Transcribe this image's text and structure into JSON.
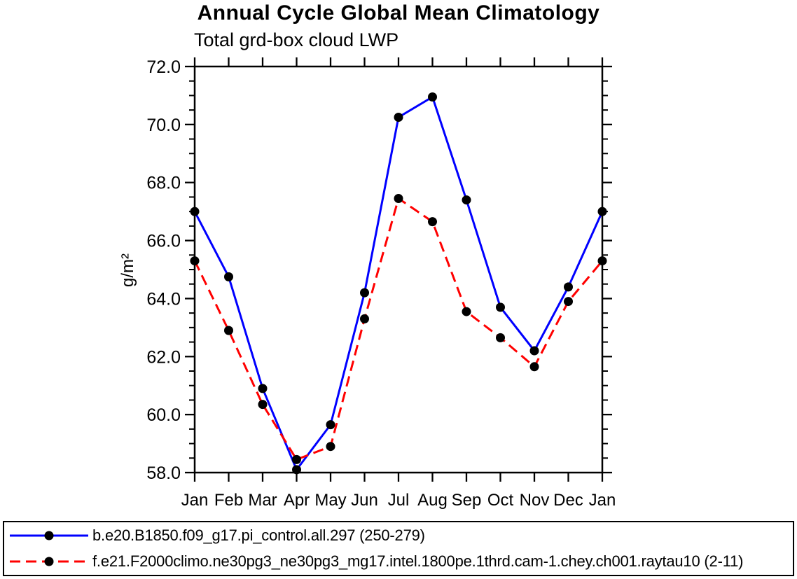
{
  "page": {
    "background": "#ffffff"
  },
  "chart_data": {
    "type": "line",
    "title": "Annual Cycle Global Mean Climatology",
    "subtitle": "Total grd-box cloud LWP",
    "ylabel": "g/m²",
    "categories": [
      "Jan",
      "Feb",
      "Mar",
      "Apr",
      "May",
      "Jun",
      "Jul",
      "Aug",
      "Sep",
      "Oct",
      "Nov",
      "Dec",
      "Jan"
    ],
    "ylim": [
      58.0,
      72.0
    ],
    "ytick_major_values": [
      58.0,
      60.0,
      62.0,
      64.0,
      66.0,
      68.0,
      70.0,
      72.0
    ],
    "ytick_major_labels": [
      "58.0",
      "60.0",
      "62.0",
      "64.0",
      "66.0",
      "68.0",
      "70.0",
      "72.0"
    ],
    "ytick_minor_step": 0.5,
    "grid": "off",
    "legend_position": "bottom-box",
    "axis_color": "#000000",
    "marker_color": "#000000",
    "series": [
      {
        "name": "b.e20.B1850.f09_g17.pi_control.all.297 (250-279)",
        "color": "#0000ff",
        "style": "solid",
        "marker": "filled-circle",
        "values": [
          67.0,
          64.75,
          60.9,
          58.1,
          59.65,
          64.2,
          70.25,
          70.95,
          67.4,
          63.7,
          62.2,
          64.4,
          67.0
        ]
      },
      {
        "name": "f.e21.F2000climo.ne30pg3_ne30pg3_mg17.intel.1800pe.1thrd.cam-1.chey.ch001.raytau10 (2-11)",
        "color": "#ff0000",
        "style": "dashed",
        "marker": "filled-circle",
        "values": [
          65.3,
          62.9,
          60.35,
          58.45,
          58.9,
          63.3,
          67.45,
          66.65,
          63.55,
          62.65,
          61.65,
          63.9,
          65.3
        ]
      }
    ]
  }
}
